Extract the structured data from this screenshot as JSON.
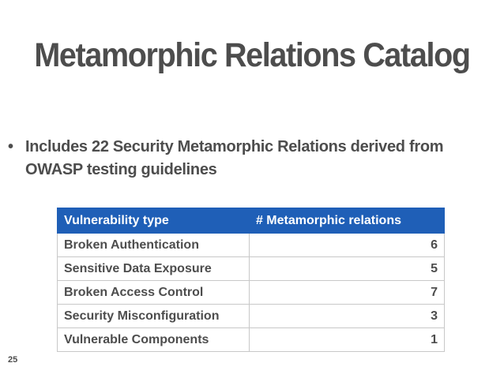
{
  "slide": {
    "title": "Metamorphic Relations Catalog",
    "bullet": "Includes 22 Security Metamorphic Relations derived from OWASP testing guidelines",
    "bullet_glyph": "•",
    "page_number": "25"
  },
  "table": {
    "headers": [
      "Vulnerability type",
      "# Metamorphic relations"
    ],
    "rows": [
      {
        "type": "Broken Authentication",
        "count": "6"
      },
      {
        "type": "Sensitive Data Exposure",
        "count": "5"
      },
      {
        "type": "Broken Access Control",
        "count": "7"
      },
      {
        "type": "Security Misconfiguration",
        "count": "3"
      },
      {
        "type": "Vulnerable Components",
        "count": "1"
      }
    ]
  },
  "colors": {
    "header_bg": "#1f5fb7",
    "text": "#4d4d4d"
  }
}
